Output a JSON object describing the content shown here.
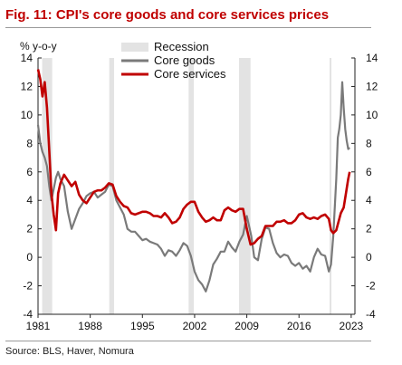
{
  "header": {
    "title": "Fig. 11: CPI's core goods and core services prices"
  },
  "footer": {
    "source": "Source: BLS, Haver, Nomura"
  },
  "chart_data": {
    "type": "line",
    "ylabel": "% y-o-y",
    "xlim": [
      1981,
      2023.5
    ],
    "ylim": [
      -4,
      14
    ],
    "yticks": [
      -4,
      -2,
      0,
      2,
      4,
      6,
      8,
      10,
      12,
      14
    ],
    "xticks": [
      1981,
      1988,
      1995,
      2002,
      2009,
      2016,
      2023
    ],
    "legend": {
      "position": "top-center",
      "entries": [
        "Recession",
        "Core goods",
        "Core services"
      ]
    },
    "recessions": [
      {
        "label": "Recession",
        "start": 1981.55,
        "end": 1982.9
      },
      {
        "label": "Recession",
        "start": 1990.55,
        "end": 1991.2
      },
      {
        "label": "Recession",
        "start": 2001.2,
        "end": 2001.9
      },
      {
        "label": "Recession",
        "start": 2007.95,
        "end": 2009.5
      },
      {
        "label": "Recession",
        "start": 2020.1,
        "end": 2020.35
      }
    ],
    "series": [
      {
        "name": "Core goods",
        "color": "#7a7a7a",
        "x": [
          1981,
          1981.3,
          1981.6,
          1981.9,
          1982.2,
          1982.5,
          1982.8,
          1983.1,
          1983.4,
          1983.7,
          1984,
          1984.5,
          1985,
          1985.5,
          1986,
          1986.5,
          1987,
          1987.5,
          1988,
          1988.5,
          1989,
          1989.5,
          1990,
          1990.5,
          1991,
          1991.5,
          1992,
          1992.5,
          1993,
          1993.5,
          1994,
          1994.5,
          1995,
          1995.5,
          1996,
          1996.5,
          1997,
          1997.5,
          1998,
          1998.5,
          1999,
          1999.5,
          2000,
          2000.5,
          2001,
          2001.5,
          2002,
          2002.5,
          2003,
          2003.5,
          2004,
          2004.5,
          2005,
          2005.5,
          2006,
          2006.5,
          2007,
          2007.5,
          2008,
          2008.5,
          2009,
          2009.3,
          2009.6,
          2010,
          2010.5,
          2011,
          2011.5,
          2012,
          2012.5,
          2013,
          2013.5,
          2014,
          2014.5,
          2015,
          2015.5,
          2016,
          2016.5,
          2017,
          2017.5,
          2018,
          2018.5,
          2019,
          2019.5,
          2020,
          2020.3,
          2020.6,
          2021,
          2021.2,
          2021.4,
          2021.6,
          2021.8,
          2022,
          2022.2,
          2022.4,
          2022.6,
          2022.8
        ],
        "y": [
          9.3,
          8.0,
          7.4,
          7.0,
          6.4,
          5.0,
          4.0,
          4.8,
          5.6,
          6.0,
          5.5,
          5.0,
          3.2,
          2.0,
          2.7,
          3.4,
          3.8,
          4.3,
          4.5,
          4.6,
          4.2,
          4.4,
          4.6,
          5.1,
          5.0,
          4.0,
          3.5,
          3.0,
          2.0,
          1.8,
          1.8,
          1.5,
          1.2,
          1.3,
          1.1,
          1.0,
          0.9,
          0.6,
          0.1,
          0.5,
          0.4,
          0.1,
          0.5,
          1.0,
          0.8,
          0.1,
          -1.0,
          -1.6,
          -1.9,
          -2.4,
          -1.6,
          -0.5,
          -0.1,
          0.4,
          0.4,
          1.1,
          0.7,
          0.4,
          1.1,
          1.6,
          2.9,
          2.2,
          1.5,
          0.0,
          -0.2,
          1.3,
          2.1,
          2.0,
          1.0,
          0.3,
          0.0,
          0.2,
          0.1,
          -0.4,
          -0.6,
          -0.4,
          -0.8,
          -0.6,
          -1.0,
          0.0,
          0.6,
          0.2,
          0.1,
          -1.0,
          -0.5,
          1.5,
          5.5,
          8.4,
          9.0,
          10.0,
          12.3,
          10.5,
          9.0,
          8.2,
          7.6,
          7.7
        ]
      },
      {
        "name": "Core services",
        "color": "#c00000",
        "x": [
          1981,
          1981.3,
          1981.6,
          1981.9,
          1982.2,
          1982.5,
          1982.8,
          1983.1,
          1983.4,
          1983.7,
          1984,
          1984.5,
          1985,
          1985.5,
          1986,
          1986.5,
          1987,
          1987.5,
          1988,
          1988.5,
          1989,
          1989.5,
          1990,
          1990.5,
          1991,
          1991.5,
          1992,
          1992.5,
          1993,
          1993.5,
          1994,
          1994.5,
          1995,
          1995.5,
          1996,
          1996.5,
          1997,
          1997.5,
          1998,
          1998.5,
          1999,
          1999.5,
          2000,
          2000.5,
          2001,
          2001.5,
          2002,
          2002.5,
          2003,
          2003.5,
          2004,
          2004.5,
          2005,
          2005.5,
          2006,
          2006.5,
          2007,
          2007.5,
          2008,
          2008.5,
          2009,
          2009.5,
          2010,
          2010.5,
          2011,
          2011.5,
          2012,
          2012.5,
          2013,
          2013.5,
          2014,
          2014.5,
          2015,
          2015.5,
          2016,
          2016.5,
          2017,
          2017.5,
          2018,
          2018.5,
          2019,
          2019.5,
          2020,
          2020.3,
          2020.6,
          2021,
          2021.3,
          2021.6,
          2022,
          2022.3,
          2022.6,
          2022.8
        ],
        "y": [
          13.2,
          12.5,
          11.3,
          12.3,
          10.5,
          7.5,
          4.5,
          3.0,
          1.9,
          4.5,
          5.2,
          5.8,
          5.4,
          5.0,
          5.3,
          4.4,
          4.0,
          3.8,
          4.2,
          4.6,
          4.7,
          4.7,
          4.9,
          5.2,
          5.1,
          4.3,
          3.9,
          3.6,
          3.5,
          3.1,
          3.0,
          3.1,
          3.2,
          3.2,
          3.1,
          2.9,
          2.9,
          2.8,
          3.1,
          2.8,
          2.4,
          2.5,
          2.8,
          3.4,
          3.7,
          3.9,
          3.9,
          3.2,
          2.8,
          2.5,
          2.6,
          2.8,
          2.6,
          2.6,
          3.3,
          3.5,
          3.3,
          3.2,
          3.4,
          3.4,
          2.0,
          0.9,
          1.0,
          1.3,
          1.5,
          2.2,
          2.2,
          2.2,
          2.5,
          2.5,
          2.6,
          2.4,
          2.4,
          2.6,
          3.0,
          3.1,
          2.8,
          2.7,
          2.8,
          2.7,
          2.9,
          3.0,
          2.7,
          1.9,
          1.7,
          1.9,
          2.5,
          3.1,
          3.5,
          4.5,
          5.5,
          6.0
        ]
      }
    ]
  }
}
